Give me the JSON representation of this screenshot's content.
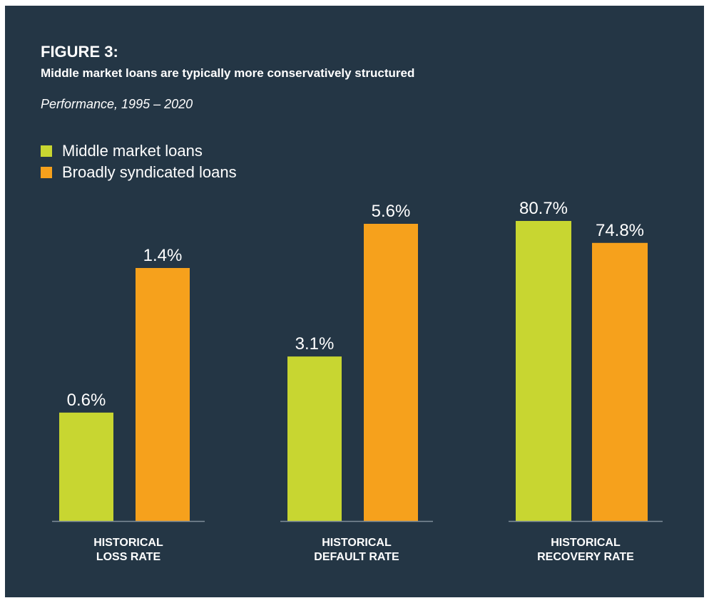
{
  "chart_data": {
    "type": "bar",
    "figure_label": "FIGURE 3:",
    "title": "Middle market loans are typically more conservatively structured",
    "subtitle": "Performance, 1995 – 2020",
    "legend_position": "top-left",
    "grid": false,
    "categories": [
      [
        "HISTORICAL",
        "LOSS RATE"
      ],
      [
        "HISTORICAL",
        "DEFAULT RATE"
      ],
      [
        "HISTORICAL",
        "RECOVERY RATE"
      ]
    ],
    "series": [
      {
        "name": "Middle market loans",
        "color": "#c8d631",
        "values": [
          0.6,
          3.1,
          80.7
        ],
        "labels": [
          "0.6%",
          "3.1%",
          "80.7%"
        ]
      },
      {
        "name": "Broadly syndicated loans",
        "color": "#f6a11c",
        "values": [
          1.4,
          5.6,
          74.8
        ],
        "labels": [
          "1.4%",
          "5.6%",
          "74.8%"
        ]
      }
    ]
  },
  "colors": {
    "background": "#243645",
    "baseline": "#7f8d99",
    "text": "#ffffff"
  }
}
